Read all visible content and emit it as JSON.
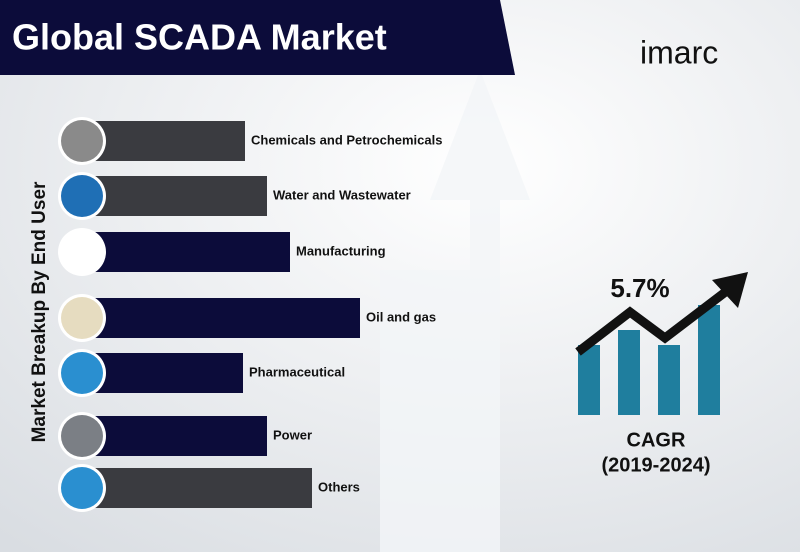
{
  "chart_data": {
    "type": "bar",
    "title": "Global SCADA Market",
    "brand": "imarc",
    "y_axis_label": "Market Breakup By End User",
    "categories": [
      "Chemicals and Petrochemicals",
      "Water and Wastewater",
      "Manufacturing",
      "Oil and gas",
      "Pharmaceutical",
      "Power",
      "Others"
    ],
    "values": [
      163,
      185,
      208,
      278,
      161,
      185,
      230
    ],
    "colors": [
      "#3a3b40",
      "#3a3b40",
      "#0c0c3a",
      "#0c0c3a",
      "#0c0c3a",
      "#0c0c3a",
      "#3a3b40"
    ],
    "icon_colors": [
      "#8a8a8a",
      "#1f6fb5",
      "#ffffff",
      "#e6dcc0",
      "#2a8fd0",
      "#7b7f85",
      "#2a8fd0"
    ],
    "annotations": [
      "5.7%",
      "CAGR",
      "(2019-2024)"
    ]
  }
}
